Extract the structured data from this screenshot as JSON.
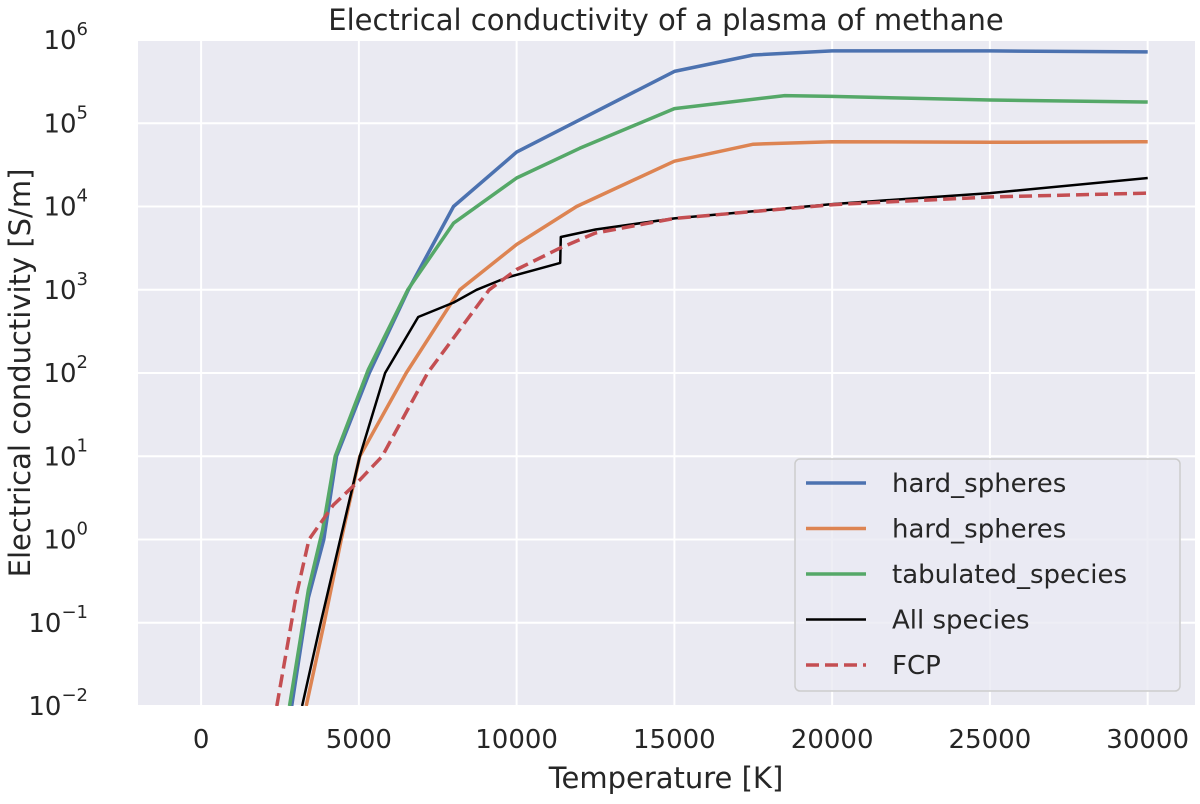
{
  "chart_data": {
    "type": "line",
    "title": "Electrical conductivity of a plasma of methane",
    "xlabel": "Temperature [K]",
    "ylabel": "Electrical conductivity [S/m]",
    "xlim": [
      -2000,
      31500
    ],
    "ylim": [
      0.01,
      1000000
    ],
    "yscale": "log",
    "grid": true,
    "legend": "bottom-right",
    "xticks": [
      0,
      5000,
      10000,
      15000,
      20000,
      25000,
      30000
    ],
    "yticks": [
      {
        "exp": "6",
        "value": 1000000.0
      },
      {
        "exp": "5",
        "value": 100000.0
      },
      {
        "exp": "4",
        "value": 10000.0
      },
      {
        "exp": "3",
        "value": 1000.0
      },
      {
        "exp": "2",
        "value": 100.0
      },
      {
        "exp": "1",
        "value": 10.0
      },
      {
        "exp": "0",
        "value": 1
      },
      {
        "exp": "−1",
        "value": 0.1
      },
      {
        "exp": "−2",
        "value": 0.01
      }
    ],
    "series": [
      {
        "name": "hard_spheres",
        "color": "#4c72b0",
        "dash": false,
        "width": 3.5,
        "x": [
          2870,
          3400,
          3890,
          4290,
          5330,
          6570,
          8000,
          10000,
          12000,
          15000,
          17500,
          20000,
          25000,
          30000
        ],
        "y": [
          0.01,
          0.2,
          1,
          10,
          100,
          1000,
          10000.0,
          45000.0,
          110000.0,
          420000.0,
          660000.0,
          740000.0,
          740000.0,
          720000.0
        ]
      },
      {
        "name": "hard_spheres",
        "color": "#dd8452",
        "dash": false,
        "width": 3.5,
        "x": [
          3330,
          3900,
          4440,
          5030,
          6500,
          8200,
          10000,
          11900,
          15000,
          17500,
          20000,
          25000,
          30000
        ],
        "y": [
          0.01,
          0.1,
          1,
          10,
          100,
          1000,
          3500.0,
          10000.0,
          35000.0,
          56000.0,
          60000.0,
          59000.0,
          60000.0
        ]
      },
      {
        "name": "tabulated_species",
        "color": "#55a868",
        "dash": false,
        "width": 3.5,
        "x": [
          2800,
          3400,
          3850,
          4250,
          5300,
          6550,
          8000,
          10000,
          12000,
          15000,
          18500,
          20000,
          25000,
          30000
        ],
        "y": [
          0.01,
          0.25,
          1.3,
          10,
          110,
          1000,
          6300.0,
          22000.0,
          50000.0,
          150000.0,
          215000.0,
          210000.0,
          190000.0,
          180000.0
        ]
      },
      {
        "name": "All species",
        "color": "#000000",
        "dash": false,
        "width": 2.5,
        "x": [
          3200,
          3790,
          4410,
          5030,
          5830,
          6880,
          8000,
          8730,
          9680,
          10500,
          11380,
          11400,
          12500,
          15000,
          20000,
          25000,
          30000
        ],
        "y": [
          0.01,
          0.1,
          1,
          10,
          100,
          470,
          700,
          1000,
          1400,
          1700,
          2100,
          4300,
          5300,
          7200,
          10700.0,
          14500.0,
          22000.0
        ]
      },
      {
        "name": "FCP",
        "color": "#c44e52",
        "dash": true,
        "width": 3.5,
        "x": [
          2400,
          3000,
          3420,
          4190,
          5030,
          5740,
          7180,
          9130,
          10000,
          11400,
          12500,
          15000,
          20000,
          25000,
          30000
        ],
        "y": [
          0.01,
          0.2,
          1,
          2.6,
          5.2,
          10,
          100,
          1000,
          1750,
          3200,
          4800,
          7200,
          10500.0,
          13000.0,
          14500.0
        ]
      }
    ]
  }
}
